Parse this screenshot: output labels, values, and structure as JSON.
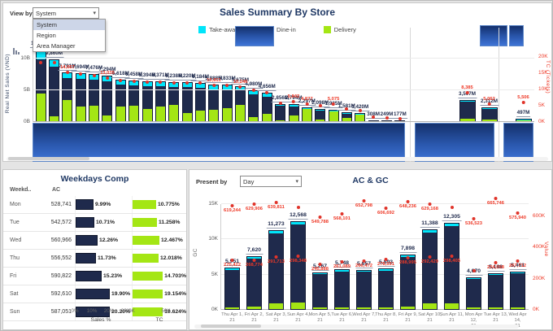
{
  "colors": {
    "navy": "#1F2A4C",
    "cyan": "#00E5FA",
    "green": "#A4E614",
    "red": "#EE3A28",
    "title_navy": "#1F3864",
    "gradient_top": "#14306B",
    "gradient_bottom": "#3E74D6"
  },
  "ui": {
    "top": {
      "view_by_label": "View by",
      "view_by_value": "System",
      "view_by_options": [
        "System",
        "Region",
        "Area Manager"
      ],
      "title": "Sales Summary By Store",
      "legend": [
        {
          "label": "Take-away",
          "color": "#00E5FA"
        },
        {
          "label": "Dine-in",
          "color": "#1F2A4C"
        },
        {
          "label": "Delivery",
          "color": "#A4E614"
        }
      ],
      "y_axis_label": "Real Net Sales (VND)",
      "y_ticks": [
        "10B",
        "5B",
        "0B"
      ],
      "y2_axis_label": "TC (Tickets)",
      "y2_ticks": [
        "20K",
        "15K",
        "10K",
        "5K",
        "0K"
      ]
    },
    "weekdays": {
      "title": "Weekdays Comp",
      "col_day": "Weekd..",
      "col_ac": "AC",
      "sales_ticks": [
        "0%",
        "10%",
        "20%",
        "30%"
      ],
      "sales_axis_label": "Sales %",
      "tc_ticks": [
        "0K",
        "50K"
      ],
      "tc_axis_label": "TC"
    },
    "acgc": {
      "present_by_label": "Present by",
      "present_by_value": "Day",
      "title": "AC & GC",
      "y_axis_label": "GC",
      "y_ticks": [
        "15K",
        "10K",
        "5K",
        "0K"
      ],
      "y2_axis_label": "Value",
      "y2_ticks": [
        "600K",
        "400K",
        "200K",
        "0K"
      ]
    }
  },
  "chart_data": [
    {
      "name": "sales_summary_by_store",
      "type": "bar",
      "stacked": true,
      "title": "Sales Summary By Store",
      "ylabel": "Real Net Sales (VND)",
      "y2label": "TC (Tickets)",
      "ylim_millions": [
        0,
        12000
      ],
      "y2lim": [
        0,
        20000
      ],
      "series_names": [
        "Delivery",
        "Dine-in",
        "Take-away"
      ],
      "group_sizes": [
        28,
        2,
        1
      ],
      "labels": [
        "11,365M",
        "9,860M",
        "7,791M",
        "7,694M",
        "7,476M",
        "7,294M",
        "6,618M",
        "6,458M",
        "6,394M",
        "6,371M",
        "6,238M",
        "6,220M",
        "6,184M",
        "5,888M",
        "5,833M",
        "5,675M",
        "4,980M",
        "4,656M",
        "2,856M",
        "2,794M",
        "2,297M",
        "2,098M",
        "1,925M",
        "1,581M",
        "1,420M",
        "308M",
        "249M",
        "177M",
        "3,507M",
        "2,312M",
        "497M"
      ],
      "values_m": [
        11365,
        9860,
        7791,
        7694,
        7476,
        7294,
        6618,
        6458,
        6394,
        6371,
        6238,
        6220,
        6184,
        5888,
        5833,
        5675,
        4980,
        4656,
        2856,
        2794,
        2297,
        2098,
        1925,
        1581,
        1420,
        308,
        249,
        177,
        3507,
        2312,
        497
      ],
      "tc_labels": [
        "",
        "",
        "14,667",
        "",
        "",
        "13,035",
        "",
        "",
        "",
        "",
        "",
        "",
        "",
        "10,811",
        "",
        "10,246",
        "",
        "",
        "",
        "5,842",
        "4,877",
        "",
        "5,075",
        "",
        "",
        "",
        "",
        "",
        "8,385",
        "5,062",
        "5,506"
      ],
      "tc_values": [
        17800,
        17750,
        14667,
        14200,
        13800,
        13035,
        12200,
        11900,
        11800,
        11750,
        11500,
        11450,
        11400,
        10811,
        10750,
        10246,
        9200,
        8600,
        5300,
        5842,
        4877,
        4500,
        5075,
        3400,
        3100,
        900,
        700,
        500,
        8385,
        5062,
        5506
      ],
      "fracs": [
        [
          0.38,
          0.5,
          0.12
        ],
        [
          0.08,
          0.82,
          0.1
        ],
        [
          0.42,
          0.48,
          0.1
        ],
        [
          0.3,
          0.6,
          0.1
        ],
        [
          0.33,
          0.57,
          0.1
        ],
        [
          0.12,
          0.78,
          0.1
        ],
        [
          0.35,
          0.55,
          0.1
        ],
        [
          0.38,
          0.52,
          0.1
        ],
        [
          0.3,
          0.6,
          0.1
        ],
        [
          0.35,
          0.55,
          0.1
        ],
        [
          0.4,
          0.5,
          0.1
        ],
        [
          0.2,
          0.7,
          0.1
        ],
        [
          0.28,
          0.62,
          0.1
        ],
        [
          0.3,
          0.6,
          0.1
        ],
        [
          0.35,
          0.55,
          0.1
        ],
        [
          0.45,
          0.45,
          0.1
        ],
        [
          0.12,
          0.78,
          0.1
        ],
        [
          0.25,
          0.65,
          0.1
        ],
        [
          0.06,
          0.88,
          0.06
        ],
        [
          0.3,
          0.62,
          0.08
        ],
        [
          0.96,
          0.0,
          0.04
        ],
        [
          0.15,
          0.8,
          0.05
        ],
        [
          0.94,
          0.0,
          0.06
        ],
        [
          0.3,
          0.64,
          0.06
        ],
        [
          0.9,
          0.04,
          0.06
        ],
        [
          0.15,
          0.25,
          0.6
        ],
        [
          0.1,
          0.85,
          0.05
        ],
        [
          0.3,
          0.6,
          0.1
        ],
        [
          0.1,
          0.85,
          0.05
        ],
        [
          0.12,
          0.83,
          0.05
        ],
        [
          0.08,
          0.88,
          0.04
        ]
      ]
    },
    {
      "name": "weekdays_comp",
      "type": "table",
      "sales_xlim": [
        0,
        30
      ],
      "rows": [
        {
          "day": "Mon",
          "ac": "528,741",
          "sales_pct": 9.99,
          "sales_label": "9.99%",
          "tc_pct": 10.775,
          "tc_label": "10.775%"
        },
        {
          "day": "Tue",
          "ac": "542,572",
          "sales_pct": 10.71,
          "sales_label": "10.71%",
          "tc_pct": 11.258,
          "tc_label": "11.258%"
        },
        {
          "day": "Wed",
          "ac": "560,966",
          "sales_pct": 12.26,
          "sales_label": "12.26%",
          "tc_pct": 12.467,
          "tc_label": "12.467%"
        },
        {
          "day": "Thu",
          "ac": "556,552",
          "sales_pct": 11.73,
          "sales_label": "11.73%",
          "tc_pct": 12.018,
          "tc_label": "12.018%"
        },
        {
          "day": "Fri",
          "ac": "590,822",
          "sales_pct": 15.23,
          "sales_label": "15.23%",
          "tc_pct": 14.703,
          "tc_label": "14.703%"
        },
        {
          "day": "Sat",
          "ac": "592,610",
          "sales_pct": 19.9,
          "sales_label": "19.90%",
          "tc_pct": 19.154,
          "tc_label": "19.154%"
        },
        {
          "day": "Sun",
          "ac": "587,051",
          "sales_pct": 20.2,
          "sales_label": "20.20%",
          "tc_pct": 19.624,
          "tc_label": "19.624%"
        }
      ]
    },
    {
      "name": "ac_gc",
      "type": "bar",
      "stacked": true,
      "ylim": [
        0,
        15000
      ],
      "y2lim": [
        0,
        600000
      ],
      "categories": [
        "Thu Apr 1, 21",
        "Fri Apr 2, 21",
        "Sat Apr 3, 21",
        "Sun Apr 4, 21",
        "Mon Apr 5, 21",
        "Tue Apr 6, 21",
        "Wed Apr 7, 21",
        "Thu Apr 8, 21",
        "Fri Apr 9, 21",
        "Sat Apr 10, 21",
        "Sun Apr 11, 21",
        "Mon Apr 12, 21",
        "Tue Apr 13, 21",
        "Wed Apr 14, 21"
      ],
      "gc_labels": [
        "5,951",
        "7,620",
        "11,273",
        "12,568",
        "5,267",
        "5,748",
        "5,657",
        "5,893",
        "7,898",
        "11,388",
        "12,305",
        "4,670",
        "5,188",
        "5,461"
      ],
      "gc_values": [
        5951,
        7620,
        11273,
        12568,
        5267,
        5748,
        5657,
        5893,
        7898,
        11388,
        12305,
        4670,
        5188,
        5461
      ],
      "ac_dots_upper": {
        "labels": [
          "619,244",
          "629,906",
          "639,811",
          "",
          "549,788",
          "568,101",
          "652,798",
          "606,692",
          "648,236",
          "629,168",
          "",
          "536,523",
          "665,746",
          "575,940"
        ],
        "values": [
          619244,
          629906,
          639811,
          648000,
          549788,
          568101,
          652798,
          606692,
          648236,
          629168,
          645000,
          536523,
          665746,
          575940
        ]
      },
      "ac_dots_lower": {
        "labels": [
          "270,422",
          "268,774",
          "291,713",
          "298,348",
          "245,888",
          "261,089",
          "266,472",
          "278,591",
          "288,995",
          "292,429",
          "298,405",
          "",
          "254,098",
          "267,712"
        ],
        "values": [
          270422,
          268774,
          291713,
          298348,
          245888,
          261089,
          266472,
          278591,
          288995,
          292429,
          298405,
          240000,
          254098,
          267712
        ]
      },
      "fracs": [
        [
          0.04,
          0.93,
          0.03
        ],
        [
          0.05,
          0.92,
          0.03
        ],
        [
          0.07,
          0.9,
          0.03
        ],
        [
          0.07,
          0.9,
          0.03
        ],
        [
          0.04,
          0.93,
          0.03
        ],
        [
          0.04,
          0.93,
          0.03
        ],
        [
          0.04,
          0.93,
          0.03
        ],
        [
          0.04,
          0.93,
          0.03
        ],
        [
          0.05,
          0.92,
          0.03
        ],
        [
          0.07,
          0.9,
          0.03
        ],
        [
          0.07,
          0.9,
          0.03
        ],
        [
          0.04,
          0.93,
          0.03
        ],
        [
          0.04,
          0.93,
          0.03
        ],
        [
          0.04,
          0.93,
          0.03
        ]
      ]
    }
  ]
}
